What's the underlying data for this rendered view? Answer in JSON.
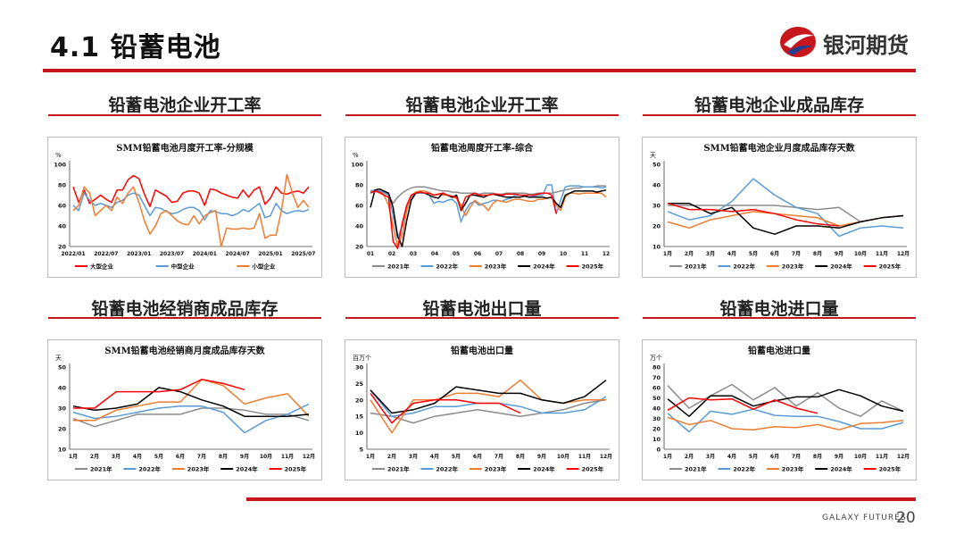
{
  "page": {
    "title": "4.1 铅蓄电池",
    "logo_text": "银河期货",
    "footer_brand": "GALAXY FUTURES",
    "page_number": "20"
  },
  "colors": {
    "accent_red": "#c8161d",
    "gray": "#8c8c8c",
    "blue": "#5b9bd5",
    "orange": "#ed7d31",
    "black": "#000000",
    "red": "#ff0000"
  },
  "charts": [
    {
      "section_title": "铅蓄电池企业开工率",
      "chart_data": {
        "type": "line",
        "title": "SMM铅蓄电池月度开工率-分规模",
        "unit": "%",
        "ylim": [
          20,
          100
        ],
        "yticks": [
          20,
          40,
          60,
          80,
          100
        ],
        "x_ticks": [
          "2022/01",
          "2022/07",
          "2023/01",
          "2023/07",
          "2024/01",
          "2024/07",
          "2025/01",
          "2025/07"
        ],
        "x_count": 44,
        "tick_positions": [
          0,
          6,
          12,
          18,
          24,
          30,
          36,
          42
        ],
        "legend": "bottom",
        "series": [
          {
            "name": "大型企业",
            "color": "#ff0000",
            "values": [
              78,
              63,
              75,
              62,
              66,
              70,
              66,
              63,
              75,
              75,
              85,
              89,
              86,
              71,
              59,
              75,
              72,
              69,
              63,
              64,
              72,
              74,
              74,
              72,
              60,
              76,
              75,
              72,
              70,
              68,
              67,
              75,
              68,
              75,
              78,
              61,
              67,
              78,
              72,
              71,
              73,
              74,
              72,
              78
            ]
          },
          {
            "name": "中型企业",
            "color": "#5b9bd5",
            "values": [
              60,
              55,
              72,
              65,
              60,
              62,
              60,
              58,
              63,
              65,
              70,
              72,
              70,
              60,
              50,
              58,
              57,
              54,
              52,
              53,
              56,
              58,
              58,
              55,
              46,
              55,
              54,
              52,
              52,
              50,
              52,
              56,
              54,
              58,
              62,
              48,
              50,
              62,
              55,
              52,
              54,
              55,
              54,
              56
            ]
          },
          {
            "name": "小型企业",
            "color": "#ed7d31",
            "values": [
              55,
              60,
              78,
              72,
              50,
              55,
              60,
              55,
              68,
              62,
              72,
              78,
              63,
              45,
              32,
              40,
              52,
              55,
              50,
              45,
              42,
              41,
              50,
              42,
              50,
              53,
              55,
              20,
              38,
              37,
              37,
              38,
              37,
              38,
              52,
              28,
              31,
              31,
              55,
              90,
              72,
              58,
              65,
              58
            ]
          }
        ]
      }
    },
    {
      "section_title": "铅蓄电池企业开工率",
      "chart_data": {
        "type": "line",
        "title": "铅蓄电池周度开工率-综合",
        "unit": "%",
        "ylim": [
          20,
          100
        ],
        "yticks": [
          20,
          40,
          60,
          80,
          100
        ],
        "x_ticks": [
          "01",
          "02",
          "03",
          "04",
          "05",
          "06",
          "07",
          "08",
          "09",
          "10",
          "11",
          "12"
        ],
        "x_count": 53,
        "legend": "bottom",
        "series": [
          {
            "name": "2021年",
            "color": "#8c8c8c",
            "values": [
              74,
              75,
              74,
              72,
              70,
              62,
              68,
              72,
              75,
              77,
              78,
              78,
              78,
              77,
              76,
              75,
              74,
              74,
              73,
              73,
              72,
              72,
              72,
              72,
              71,
              72,
              72,
              72,
              71,
              71,
              72,
              72,
              72,
              72,
              72,
              71,
              71,
              72,
              72,
              72,
              72,
              73,
              74,
              75,
              76,
              77,
              77,
              78,
              78,
              78,
              79,
              79,
              79
            ]
          },
          {
            "name": "2022年",
            "color": "#5b9bd5",
            "values": [
              74,
              75,
              74,
              73,
              71,
              50,
              28,
              40,
              58,
              68,
              72,
              72,
              72,
              70,
              62,
              64,
              63,
              65,
              66,
              62,
              44,
              55,
              62,
              64,
              60,
              62,
              63,
              65,
              65,
              64,
              66,
              67,
              70,
              70,
              70,
              68,
              69,
              70,
              70,
              80,
              80,
              52,
              65,
              78,
              79,
              79,
              79,
              78,
              78,
              78,
              78,
              77,
              78
            ]
          },
          {
            "name": "2023年",
            "color": "#ed7d31",
            "values": [
              73,
              74,
              72,
              70,
              60,
              40,
              20,
              30,
              55,
              70,
              73,
              74,
              74,
              72,
              70,
              71,
              70,
              70,
              68,
              67,
              60,
              50,
              58,
              65,
              62,
              60,
              55,
              62,
              65,
              64,
              63,
              65,
              66,
              66,
              65,
              64,
              64,
              66,
              66,
              67,
              68,
              60,
              55,
              68,
              72,
              72,
              71,
              72,
              72,
              72,
              72,
              72,
              68
            ]
          },
          {
            "name": "2024年",
            "color": "#000000",
            "values": [
              58,
              75,
              76,
              74,
              72,
              58,
              30,
              20,
              45,
              65,
              72,
              73,
              72,
              70,
              68,
              67,
              72,
              70,
              68,
              70,
              55,
              62,
              70,
              70,
              69,
              68,
              70,
              71,
              70,
              69,
              68,
              68,
              68,
              68,
              69,
              68,
              68,
              68,
              68,
              67,
              68,
              62,
              58,
              70,
              72,
              74,
              74,
              74,
              74,
              74,
              73,
              74,
              75
            ]
          },
          {
            "name": "2025年",
            "color": "#ff0000",
            "values": [
              72,
              74,
              73,
              70,
              68,
              25,
              18,
              42,
              60,
              70,
              72,
              73,
              72,
              72,
              70,
              71,
              72,
              70,
              69,
              68,
              56,
              68,
              70,
              72,
              70,
              70,
              70,
              71,
              71,
              70,
              71,
              71,
              71,
              70,
              70,
              70,
              70,
              71,
              72,
              72,
              70,
              52
            ]
          }
        ]
      }
    },
    {
      "section_title": "铅蓄电池企业成品库存",
      "chart_data": {
        "type": "line",
        "title": "SMM铅蓄电池企业月度成品库存天数",
        "unit": "天",
        "ylim": [
          10,
          50
        ],
        "yticks": [
          10,
          20,
          30,
          40,
          50
        ],
        "x_ticks": [
          "1月",
          "2月",
          "3月",
          "4月",
          "5月",
          "6月",
          "7月",
          "8月",
          "9月",
          "10月",
          "11月",
          "12月"
        ],
        "x_count": 12,
        "legend": "bottom",
        "series": [
          {
            "name": "2021年",
            "color": "#8c8c8c",
            "values": [
              30,
              30,
              30,
              30,
              30,
              30,
              29,
              28,
              29,
              22,
              24,
              25
            ]
          },
          {
            "name": "2022年",
            "color": "#5b9bd5",
            "values": [
              27,
              23,
              25,
              32,
              43,
              35,
              29,
              26,
              15,
              19,
              20,
              19
            ]
          },
          {
            "name": "2023年",
            "color": "#ed7d31",
            "values": [
              22,
              19,
              23,
              25,
              27,
              26,
              25,
              24,
              20,
              22,
              24,
              25
            ]
          },
          {
            "name": "2024年",
            "color": "#000000",
            "values": [
              31,
              31,
              26,
              29,
              19,
              16,
              20,
              20,
              19,
              22,
              24,
              25
            ]
          },
          {
            "name": "2025年",
            "color": "#ff0000",
            "values": [
              31,
              28,
              28,
              27,
              28,
              26,
              23,
              21,
              20
            ]
          }
        ]
      }
    },
    {
      "section_title": "铅蓄电池经销商成品库存",
      "chart_data": {
        "type": "line",
        "title": "SMM铅蓄电池经销商月度成品库存天数",
        "unit": "天",
        "ylim": [
          10,
          50
        ],
        "yticks": [
          10,
          20,
          30,
          40,
          50
        ],
        "x_ticks": [
          "1月",
          "2月",
          "3月",
          "4月",
          "5月",
          "6月",
          "7月",
          "8月",
          "9月",
          "10月",
          "11月",
          "12月"
        ],
        "x_count": 12,
        "legend": "bottom",
        "series": [
          {
            "name": "2021年",
            "color": "#8c8c8c",
            "values": [
              25,
              21,
              24,
              27,
              27,
              27,
              30,
              30,
              29,
              27,
              27,
              24
            ]
          },
          {
            "name": "2022年",
            "color": "#5b9bd5",
            "values": [
              28,
              25,
              26,
              28,
              30,
              31,
              31,
              28,
              18,
              24,
              27,
              32
            ]
          },
          {
            "name": "2023年",
            "color": "#ed7d31",
            "values": [
              24,
              24,
              29,
              31,
              33,
              33,
              44,
              41,
              32,
              35,
              37,
              26
            ]
          },
          {
            "name": "2024年",
            "color": "#000000",
            "values": [
              31,
              29,
              30,
              32,
              40,
              38,
              34,
              31,
              26,
              26,
              26,
              27
            ]
          },
          {
            "name": "2025年",
            "color": "#ff0000",
            "values": [
              30,
              30,
              38,
              38,
              38,
              39,
              44,
              42,
              39
            ]
          }
        ]
      }
    },
    {
      "section_title": "铅蓄电池出口量",
      "chart_data": {
        "type": "line",
        "title": "铅蓄电池出口量",
        "unit": "百万个",
        "ylim": [
          5,
          30
        ],
        "yticks": [
          5,
          10,
          15,
          20,
          25,
          30
        ],
        "x_ticks": [
          "1月",
          "2月",
          "3月",
          "4月",
          "5月",
          "6月",
          "7月",
          "8月",
          "9月",
          "10月",
          "11月",
          "12月"
        ],
        "x_count": 12,
        "legend": "bottom",
        "series": [
          {
            "name": "2021年",
            "color": "#8c8c8c",
            "values": [
              16,
              15,
              13,
              15,
              16,
              17,
              16,
              15,
              16,
              17,
              19,
              20
            ]
          },
          {
            "name": "2022年",
            "color": "#5b9bd5",
            "values": [
              23,
              15,
              16,
              18,
              18,
              19,
              19,
              18,
              16,
              16,
              17,
              21
            ]
          },
          {
            "name": "2023年",
            "color": "#ed7d31",
            "values": [
              20,
              10,
              20,
              20,
              22,
              22,
              21,
              26,
              20,
              19,
              20,
              20
            ]
          },
          {
            "name": "2024年",
            "color": "#000000",
            "values": [
              23,
              16,
              17,
              19,
              24,
              23,
              22,
              22,
              20,
              19,
              21,
              26
            ]
          },
          {
            "name": "2025年",
            "color": "#ff0000",
            "values": [
              22,
              13,
              19,
              20,
              20,
              19,
              19,
              16
            ]
          }
        ]
      }
    },
    {
      "section_title": "铅蓄电池进口量",
      "chart_data": {
        "type": "line",
        "title": "铅蓄电池进口量",
        "unit": "万个",
        "ylim": [
          0,
          80
        ],
        "yticks": [
          0,
          10,
          20,
          30,
          40,
          50,
          60,
          70,
          80
        ],
        "x_ticks": [
          "1月",
          "2月",
          "3月",
          "4月",
          "5月",
          "6月",
          "7月",
          "8月",
          "9月",
          "10月",
          "11月",
          "12月"
        ],
        "x_count": 12,
        "legend": "bottom",
        "series": [
          {
            "name": "2021年",
            "color": "#8c8c8c",
            "values": [
              62,
              40,
              52,
              63,
              48,
              60,
              42,
              55,
              40,
              32,
              47,
              37
            ]
          },
          {
            "name": "2022年",
            "color": "#5b9bd5",
            "values": [
              35,
              17,
              37,
              34,
              39,
              33,
              32,
              32,
              27,
              20,
              20,
              26
            ]
          },
          {
            "name": "2023年",
            "color": "#ed7d31",
            "values": [
              31,
              24,
              28,
              20,
              19,
              22,
              21,
              24,
              19,
              25,
              26,
              28
            ]
          },
          {
            "name": "2024年",
            "color": "#000000",
            "values": [
              49,
              32,
              52,
              52,
              42,
              47,
              51,
              51,
              58,
              52,
              42,
              37
            ]
          },
          {
            "name": "2025年",
            "color": "#ff0000",
            "values": [
              38,
              50,
              48,
              49,
              39,
              48,
              40,
              35
            ]
          }
        ]
      }
    }
  ]
}
